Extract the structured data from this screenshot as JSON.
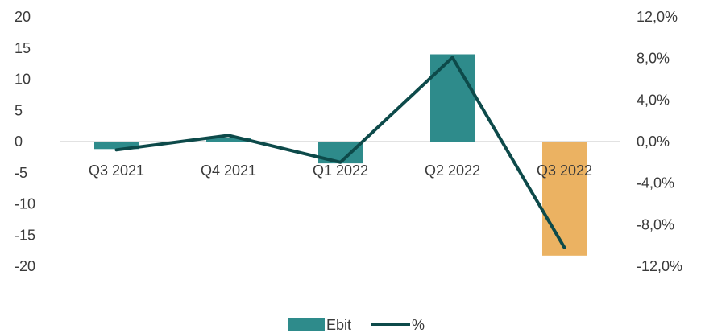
{
  "chart_data": {
    "type": "bar",
    "categories": [
      "Q3 2021",
      "Q4 2021",
      "Q1 2022",
      "Q2 2022",
      "Q3 2022"
    ],
    "series": [
      {
        "name": "Ebit",
        "type": "bar",
        "axis": "left",
        "values": [
          -1.2,
          0.6,
          -3.5,
          14.0,
          -18.3
        ],
        "colors": [
          "#2e8b8b",
          "#2e8b8b",
          "#2e8b8b",
          "#2e8b8b",
          "#ebb262"
        ]
      },
      {
        "name": "%",
        "type": "line",
        "axis": "right",
        "values": [
          -0.8,
          0.6,
          -2.0,
          8.1,
          -10.2
        ],
        "color": "#0d4a4a"
      }
    ],
    "y_left": {
      "ylim": [
        -20,
        20
      ],
      "ticks": [
        "20",
        "15",
        "10",
        "5",
        "0",
        "-5",
        "-10",
        "-15",
        "-20"
      ],
      "tick_values": [
        20,
        15,
        10,
        5,
        0,
        -5,
        -10,
        -15,
        -20
      ]
    },
    "y_right": {
      "ylim": [
        -12,
        12
      ],
      "ticks": [
        "12,0%",
        "8,0%",
        "4,0%",
        "0,0%",
        "-4,0%",
        "-8,0%",
        "-12,0%"
      ],
      "tick_values": [
        12,
        8,
        4,
        0,
        -4,
        -8,
        -12
      ]
    },
    "grid": false,
    "legend_position": "bottom-center",
    "zero_line_color": "#d9d9d9"
  }
}
